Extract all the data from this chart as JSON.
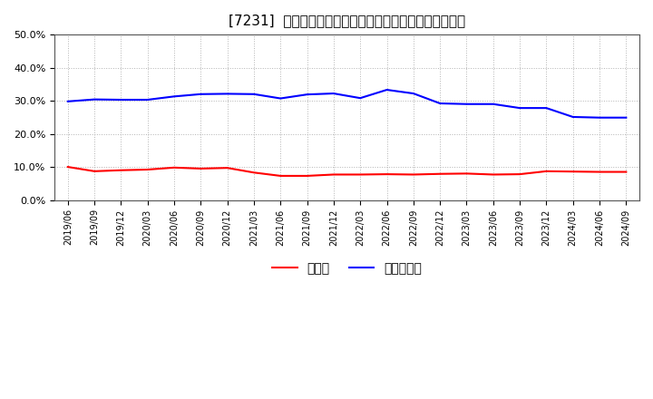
{
  "title": "[7231]  現預金、有利子負債の総資産に対する比率の推移",
  "x_labels": [
    "2019/06",
    "2019/09",
    "2019/12",
    "2020/03",
    "2020/06",
    "2020/09",
    "2020/12",
    "2021/03",
    "2021/06",
    "2021/09",
    "2021/12",
    "2022/03",
    "2022/06",
    "2022/09",
    "2022/12",
    "2023/03",
    "2023/06",
    "2023/09",
    "2023/12",
    "2024/03",
    "2024/06",
    "2024/09"
  ],
  "cash": [
    0.1,
    0.087,
    0.09,
    0.092,
    0.098,
    0.095,
    0.097,
    0.083,
    0.073,
    0.073,
    0.077,
    0.077,
    0.078,
    0.077,
    0.079,
    0.08,
    0.077,
    0.078,
    0.087,
    0.086,
    0.085,
    0.085
  ],
  "interest_bearing_debt": [
    0.298,
    0.304,
    0.303,
    0.303,
    0.313,
    0.32,
    0.321,
    0.32,
    0.307,
    0.319,
    0.322,
    0.308,
    0.333,
    0.322,
    0.292,
    0.29,
    0.29,
    0.278,
    0.278,
    0.251,
    0.249,
    0.249
  ],
  "cash_color": "#FF0000",
  "debt_color": "#0000FF",
  "background_color": "#FFFFFF",
  "plot_bg_color": "#FFFFFF",
  "grid_color": "#AAAAAA",
  "title_fontsize": 11,
  "legend_labels": [
    "現預金",
    "有利子負債"
  ],
  "ylim": [
    0.0,
    0.5
  ],
  "yticks": [
    0.0,
    0.1,
    0.2,
    0.3,
    0.4,
    0.5
  ]
}
